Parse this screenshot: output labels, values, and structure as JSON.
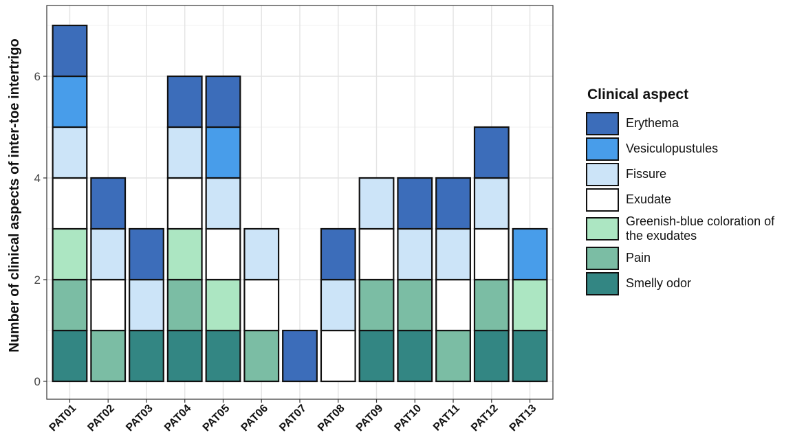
{
  "chart_data": {
    "type": "bar",
    "stacked": true,
    "title": "",
    "xlabel": "",
    "ylabel": "Number of clinical aspects of inter-toe intertrigo",
    "categories": [
      "PAT01",
      "PAT02",
      "PAT03",
      "PAT04",
      "PAT05",
      "PAT06",
      "PAT07",
      "PAT08",
      "PAT09",
      "PAT10",
      "PAT11",
      "PAT12",
      "PAT13"
    ],
    "ylim": [
      0,
      7.25
    ],
    "yticks": [
      0,
      2,
      4,
      6
    ],
    "grid": true,
    "legend_position": "right",
    "legend_title": "Clinical aspect",
    "series": [
      {
        "name": "Erythema",
        "color": "#3C6DBA"
      },
      {
        "name": "Vesiculopustules",
        "color": "#489DEA"
      },
      {
        "name": "Fissure",
        "color": "#CCE4F8"
      },
      {
        "name": "Exudate",
        "color": "#FFFFFF"
      },
      {
        "name": "Greenish-blue coloration of the exudates",
        "color": "#ACE6C2"
      },
      {
        "name": "Pain",
        "color": "#7BBDA4"
      },
      {
        "name": "Smelly odor",
        "color": "#338683"
      }
    ],
    "stacks": [
      [
        "Smelly odor",
        "Pain",
        "Greenish-blue coloration of the exudates",
        "Exudate",
        "Fissure",
        "Vesiculopustules",
        "Erythema"
      ],
      [
        "Pain",
        "Exudate",
        "Fissure",
        "Erythema"
      ],
      [
        "Smelly odor",
        "Fissure",
        "Erythema"
      ],
      [
        "Smelly odor",
        "Pain",
        "Greenish-blue coloration of the exudates",
        "Exudate",
        "Fissure",
        "Erythema"
      ],
      [
        "Smelly odor",
        "Greenish-blue coloration of the exudates",
        "Exudate",
        "Fissure",
        "Vesiculopustules",
        "Erythema"
      ],
      [
        "Pain",
        "Exudate",
        "Fissure"
      ],
      [
        "Erythema"
      ],
      [
        "Exudate",
        "Fissure",
        "Erythema"
      ],
      [
        "Smelly odor",
        "Pain",
        "Exudate",
        "Fissure"
      ],
      [
        "Smelly odor",
        "Pain",
        "Fissure",
        "Erythema"
      ],
      [
        "Pain",
        "Exudate",
        "Fissure",
        "Erythema"
      ],
      [
        "Smelly odor",
        "Pain",
        "Exudate",
        "Fissure",
        "Erythema"
      ],
      [
        "Smelly odor",
        "Greenish-blue coloration of the exudates",
        "Vesiculopustules"
      ]
    ]
  },
  "legend_labels": {
    "l0": "Erythema",
    "l1": "Vesiculopustules",
    "l2": "Fissure",
    "l3": "Exudate",
    "l4": "Greenish-blue coloration of the exudates",
    "l5": "Pain",
    "l6": "Smelly odor"
  }
}
